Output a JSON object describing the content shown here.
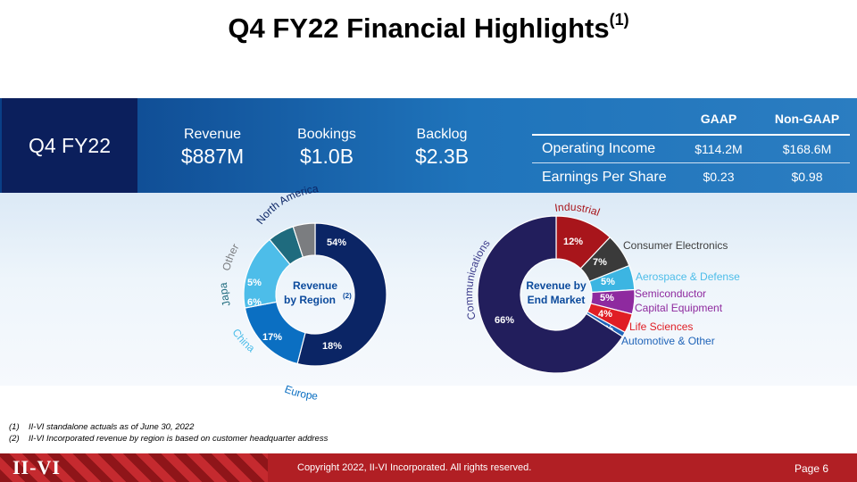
{
  "title": {
    "main": "Q4 FY22 Financial Highlights",
    "sup": "(1)"
  },
  "period": "Q4 FY22",
  "metrics": [
    {
      "label": "Revenue",
      "value": "$887M"
    },
    {
      "label": "Bookings",
      "value": "$1.0B"
    },
    {
      "label": "Backlog",
      "value": "$2.3B"
    }
  ],
  "table": {
    "headers": [
      "GAAP",
      "Non-GAAP"
    ],
    "rows": [
      {
        "label": "Operating Income",
        "gaap": "$114.2M",
        "non_gaap": "$168.6M"
      },
      {
        "label": "Earnings Per Share",
        "gaap": "$0.23",
        "non_gaap": "$0.98"
      }
    ]
  },
  "chart_data": [
    {
      "type": "pie",
      "donut": true,
      "center_label": [
        "Revenue",
        "by Region"
      ],
      "center_sup": "(2)",
      "categories": [
        "North America",
        "Europe",
        "China",
        "Japan",
        "Other"
      ],
      "values": [
        54,
        18,
        17,
        6,
        5
      ],
      "data_labels": [
        "54%",
        "18%",
        "17%",
        "6%",
        "5%"
      ],
      "colors": [
        "#0b2565",
        "#0b6fc2",
        "#4dbde9",
        "#1f6b7e",
        "#7b7d80"
      ],
      "label_colors": [
        "#0b2565",
        "#0b6fc2",
        "#4dbde9",
        "#1f6b7e",
        "#7b7d80"
      ]
    },
    {
      "type": "pie",
      "donut": true,
      "center_label": [
        "Revenue by",
        "End Market"
      ],
      "categories": [
        "Industrial",
        "Consumer Electronics",
        "Aerospace & Defense",
        "Semiconductor Capital Equipment",
        "Life Sciences",
        "Automotive & Other",
        "Communications"
      ],
      "values": [
        12,
        7,
        5,
        5,
        4,
        1,
        66
      ],
      "data_labels": [
        "12%",
        "7%",
        "5%",
        "5%",
        "4%",
        "1%",
        "66%"
      ],
      "colors": [
        "#a8151b",
        "#3a3a3a",
        "#3cb5e2",
        "#8e2a9f",
        "#e01e25",
        "#1f64b8",
        "#221e5c"
      ],
      "label_colors": [
        "#a8151b",
        "#404040",
        "#4dbde9",
        "#8e2a9f",
        "#e01e25",
        "#1f64b8",
        "#3b3b8a"
      ],
      "legend_lines": [
        "Semiconductor",
        "Capital Equipment"
      ]
    }
  ],
  "footnotes": [
    {
      "num": "(1)",
      "text": "II-VI standalone actuals as of June 30, 2022"
    },
    {
      "num": "(2)",
      "text": "II-VI Incorporated revenue by region is based on customer headquarter address"
    }
  ],
  "footer": {
    "logo": "II-VI",
    "copyright": "Copyright 2022, II-VI Incorporated. All rights reserved.",
    "page": "Page 6"
  }
}
